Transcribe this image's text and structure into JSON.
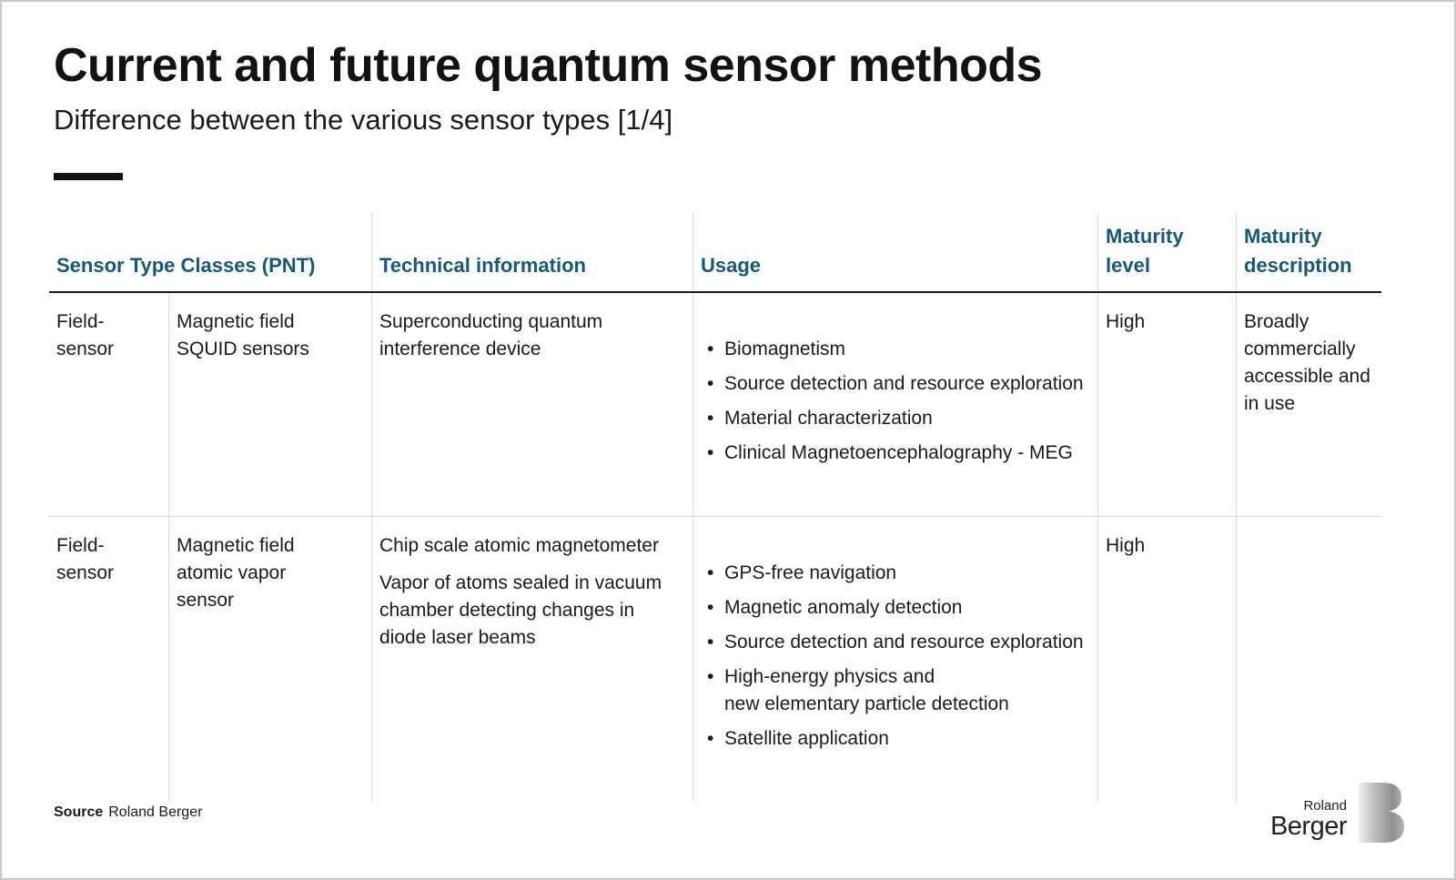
{
  "slide": {
    "title": "Current and future quantum sensor methods",
    "subtitle": "Difference between the various sensor types [1/4]"
  },
  "table": {
    "headers": {
      "sensor_class": "Sensor Type Classes (PNT)",
      "technical": "Technical information",
      "usage": "Usage",
      "maturity_level": "Maturity\nlevel",
      "maturity_description": "Maturity\ndescription"
    },
    "rows": [
      {
        "category": "Field-sensor",
        "sensor_type": "Magnetic field\nSQUID sensors",
        "technical": [
          "Superconducting quantum interference device"
        ],
        "usage": [
          "Biomagnetism",
          "Source detection and resource exploration",
          "Material characterization",
          "Clinical Magnetoencephalography - MEG"
        ],
        "maturity_level": "High",
        "maturity_description": "Broadly commercially accessible and in use"
      },
      {
        "category": "Field-sensor",
        "sensor_type": "Magnetic field\natomic vapor\nsensor",
        "technical": [
          "Chip scale atomic magnetometer",
          "Vapor of atoms sealed in vacuum chamber detecting changes in diode laser beams"
        ],
        "usage": [
          "GPS-free navigation",
          "Magnetic anomaly detection",
          "Source detection and resource exploration",
          "High-energy physics and\nnew elementary particle detection",
          "Satellite application"
        ],
        "maturity_level": "High",
        "maturity_description": ""
      }
    ]
  },
  "footer": {
    "source_label": "Source",
    "source_value": "Roland Berger"
  },
  "logo": {
    "line1": "Roland",
    "line2": "Berger"
  },
  "colors": {
    "header_blue": "#15587E",
    "text": "#1a1a1a",
    "grid_light": "#d9d9d9",
    "grid_dark": "#1a1a1a",
    "logo_silver_light": "#f0f0f0",
    "logo_silver_dark": "#8f8f8f"
  }
}
